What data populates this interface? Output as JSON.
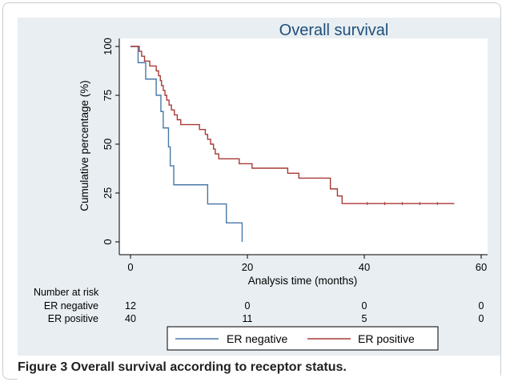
{
  "caption": "Figure 3 Overall survival according to receptor status.",
  "colors": {
    "plot_background": "#e8eef2",
    "inner_background": "#ffffff",
    "er_negative": "#4a78a8",
    "er_positive": "#a83a36",
    "title": "#1f4f7a"
  },
  "risk_table": {
    "heading": "Number at risk",
    "rows": [
      {
        "label": "ER negative",
        "counts": [
          "12",
          "0",
          "0",
          "0"
        ]
      },
      {
        "label": "ER positive",
        "counts": [
          "40",
          "11",
          "5",
          "0"
        ]
      }
    ]
  },
  "chart_data": {
    "type": "line",
    "step": true,
    "title": "Overall survival",
    "xlabel": "Analysis time (months)",
    "ylabel": "Cumulative percentage (%)",
    "xlim": [
      0,
      60
    ],
    "ylim": [
      0,
      100
    ],
    "xticks": [
      0,
      20,
      40,
      60
    ],
    "yticks": [
      0,
      25,
      50,
      75,
      100
    ],
    "grid": false,
    "legend": {
      "position": "bottom-center",
      "entries": [
        "ER negative",
        "ER positive"
      ]
    },
    "series": [
      {
        "name": "ER negative",
        "color": "#4a78a8",
        "points": [
          [
            0,
            100
          ],
          [
            1.3,
            91.7
          ],
          [
            2.6,
            83.3
          ],
          [
            4.4,
            75
          ],
          [
            5.2,
            66.7
          ],
          [
            5.6,
            58.3
          ],
          [
            6.5,
            48.6
          ],
          [
            6.8,
            38.9
          ],
          [
            7.4,
            29.2
          ],
          [
            13.2,
            19.4
          ],
          [
            16.4,
            9.7
          ],
          [
            19.1,
            0
          ]
        ]
      },
      {
        "name": "ER positive",
        "color": "#a83a36",
        "points": [
          [
            0,
            100
          ],
          [
            1.5,
            97.5
          ],
          [
            1.9,
            95
          ],
          [
            2.4,
            92.5
          ],
          [
            3.3,
            90
          ],
          [
            4.4,
            87.5
          ],
          [
            4.8,
            85
          ],
          [
            5.1,
            82.5
          ],
          [
            5.3,
            80
          ],
          [
            5.6,
            77.5
          ],
          [
            5.9,
            75
          ],
          [
            6.2,
            72.5
          ],
          [
            6.6,
            70
          ],
          [
            7.0,
            67.5
          ],
          [
            7.5,
            65
          ],
          [
            8.0,
            62.5
          ],
          [
            8.6,
            60
          ],
          [
            11.8,
            57.5
          ],
          [
            12.8,
            55
          ],
          [
            13.2,
            52.5
          ],
          [
            13.7,
            50
          ],
          [
            14.2,
            47.5
          ],
          [
            14.5,
            45
          ],
          [
            15.1,
            42.5
          ],
          [
            18.6,
            40
          ],
          [
            20.8,
            37.7
          ],
          [
            26.9,
            35.1
          ],
          [
            28.8,
            32.6
          ],
          [
            34.2,
            27.1
          ],
          [
            35.4,
            23.5
          ],
          [
            36.2,
            19.6
          ],
          [
            55.4,
            19.6
          ]
        ]
      }
    ],
    "censored": [
      {
        "series": "ER positive",
        "x": [
          40.5,
          43.5,
          46.5,
          49.5,
          52.5
        ]
      }
    ]
  }
}
